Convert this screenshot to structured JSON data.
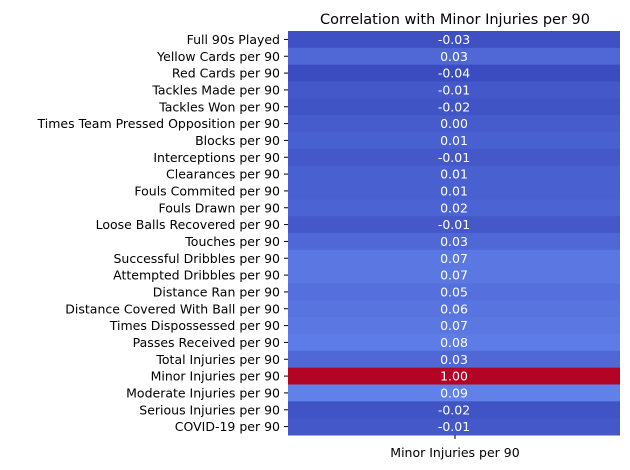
{
  "chart_data": {
    "type": "heatmap",
    "title": "Correlation with Minor Injuries per 90",
    "columns": [
      "Minor Injuries per 90"
    ],
    "rows": [
      "Full 90s Played",
      "Yellow Cards per 90",
      "Red Cards  per 90",
      "Tackles Made per 90",
      "Tackles Won per 90",
      "Times Team Pressed Opposition per 90",
      "Blocks  per 90",
      "Interceptions per 90",
      "Clearances per 90",
      "Fouls Commited per 90",
      "Fouls Drawn per 90",
      "Loose Balls Recovered per 90",
      "Touches per 90",
      "Successful Dribbles per 90",
      "Attempted Dribbles per 90",
      "Distance Ran per 90",
      "Distance Covered With Ball per 90",
      "Times Dispossessed per 90",
      "Passes Received per 90",
      "Total Injuries per 90",
      "Minor Injuries per 90",
      "Moderate Injuries per 90",
      "Serious Injuries per 90",
      "COVID-19 per 90"
    ],
    "values": [
      -0.03,
      0.03,
      -0.04,
      -0.01,
      -0.02,
      0.0,
      0.01,
      -0.01,
      0.01,
      0.01,
      0.02,
      -0.01,
      0.03,
      0.07,
      0.07,
      0.05,
      0.06,
      0.07,
      0.08,
      0.03,
      1.0,
      0.09,
      -0.02,
      -0.01
    ],
    "value_labels": [
      "-0.03",
      "0.03",
      "-0.04",
      "-0.01",
      "-0.02",
      "0.00",
      "0.01",
      "-0.01",
      "0.01",
      "0.01",
      "0.02",
      "-0.01",
      "0.03",
      "0.07",
      "0.07",
      "0.05",
      "0.06",
      "0.07",
      "0.08",
      "0.03",
      "1.00",
      "0.09",
      "-0.02",
      "-0.01"
    ],
    "colormap": "coolwarm",
    "colorbar": false,
    "annotated": true
  }
}
